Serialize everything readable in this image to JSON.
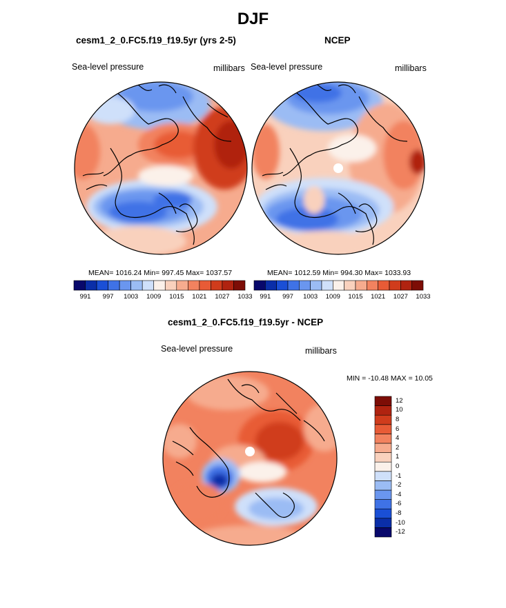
{
  "title": "DJF",
  "panels": [
    {
      "id": "model",
      "title": "cesm1_2_0.FC5.f19_f19.5yr (yrs 2-5)",
      "left_label": "Sea-level pressure",
      "right_label": "millibars",
      "stats_text": "MEAN= 1016.24  Min= 997.45  Max= 1037.57"
    },
    {
      "id": "obs",
      "title": "NCEP",
      "left_label": "Sea-level pressure",
      "right_label": "millibars",
      "stats_text": "MEAN= 1012.59  Min= 994.30  Max= 1033.93"
    },
    {
      "id": "diff",
      "title": "cesm1_2_0.FC5.f19_f19.5yr - NCEP",
      "left_label": "Sea-level pressure",
      "right_label": "millibars",
      "stats_text": "MIN = -10.48 MAX =  10.05"
    }
  ],
  "colorbar_abs": {
    "colors": [
      "#08086b",
      "#0a2ea8",
      "#1a4fd6",
      "#3f72e6",
      "#6a96ef",
      "#9bbcf4",
      "#cfe0fa",
      "#fbf1ea",
      "#f9d1bd",
      "#f6ab8e",
      "#f2825f",
      "#e85b36",
      "#d03c1c",
      "#b02310",
      "#7d0d06"
    ],
    "tick_labels": [
      "991",
      "997",
      "1003",
      "1009",
      "1015",
      "1021",
      "1027",
      "1033"
    ]
  },
  "colorbar_diff": {
    "colors": [
      "#08086b",
      "#0a2ea8",
      "#1a4fd6",
      "#3f72e6",
      "#6a96ef",
      "#9bbcf4",
      "#cfe0fa",
      "#fbf1ea",
      "#f9d1bd",
      "#f6ab8e",
      "#f2825f",
      "#e85b36",
      "#d03c1c",
      "#b02310",
      "#7d0d06"
    ],
    "tick_labels": [
      "-12",
      "-10",
      "-8",
      "-6",
      "-4",
      "-2",
      "-1",
      "0",
      "1",
      "2",
      "4",
      "6",
      "8",
      "10",
      "12"
    ]
  }
}
